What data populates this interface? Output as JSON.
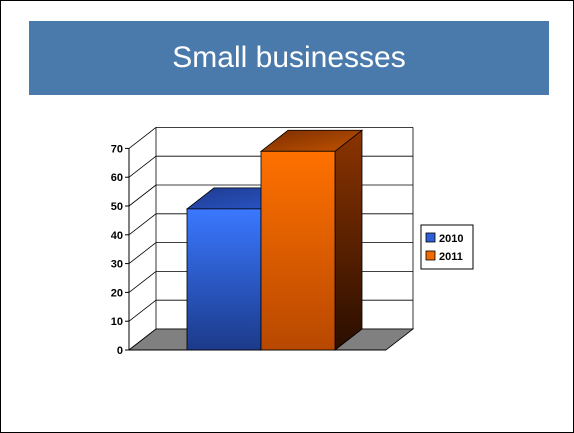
{
  "slide": {
    "title": "Small businesses"
  },
  "chart_data": {
    "type": "bar",
    "style": "3d-column",
    "categories": [
      ""
    ],
    "series": [
      {
        "name": "2010",
        "values": [
          49
        ],
        "color": "#2f5fd8"
      },
      {
        "name": "2011",
        "values": [
          69
        ],
        "color": "#f06a00"
      }
    ],
    "yticks": [
      0,
      10,
      20,
      30,
      40,
      50,
      60,
      70
    ],
    "ylim": [
      0,
      70
    ],
    "grid": true,
    "legend": "right",
    "floor_color": "#808080"
  }
}
